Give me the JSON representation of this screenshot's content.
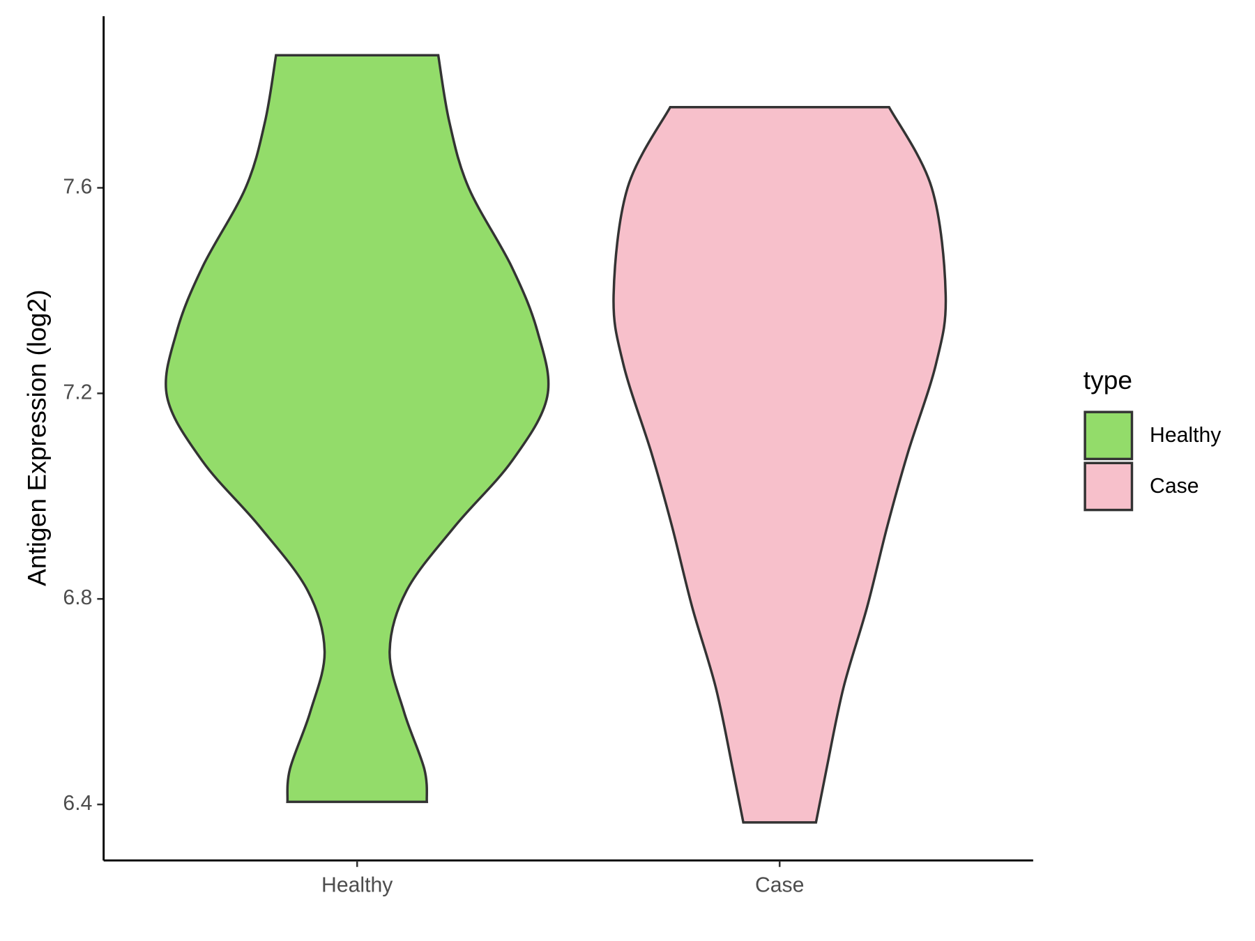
{
  "chart_data": {
    "type": "violin",
    "y_label": "Antigen Expression (log2)",
    "legend_title": "type",
    "legend": "right",
    "categories": [
      "Healthy",
      "Case"
    ],
    "series": [
      {
        "name": "Healthy",
        "color": "#93dc6a",
        "y": [
          7.858,
          7.729,
          7.6,
          7.446,
          7.32,
          7.194,
          7.068,
          6.942,
          6.816,
          6.698,
          6.58,
          6.469,
          6.405
        ],
        "width": [
          0.192,
          0.218,
          0.264,
          0.366,
          0.427,
          0.45,
          0.366,
          0.232,
          0.117,
          0.077,
          0.111,
          0.159,
          0.165
        ]
      },
      {
        "name": "Case",
        "color": "#f7c0cb",
        "y": [
          7.757,
          7.6,
          7.391,
          7.257,
          7.083,
          6.942,
          6.784,
          6.627,
          6.469,
          6.365
        ],
        "width": [
          0.259,
          0.36,
          0.393,
          0.37,
          0.303,
          0.255,
          0.207,
          0.151,
          0.111,
          0.086
        ]
      }
    ],
    "ylim": [
      6.291,
      7.934
    ],
    "yticks": [
      6.4,
      6.8,
      7.2,
      7.6
    ]
  }
}
